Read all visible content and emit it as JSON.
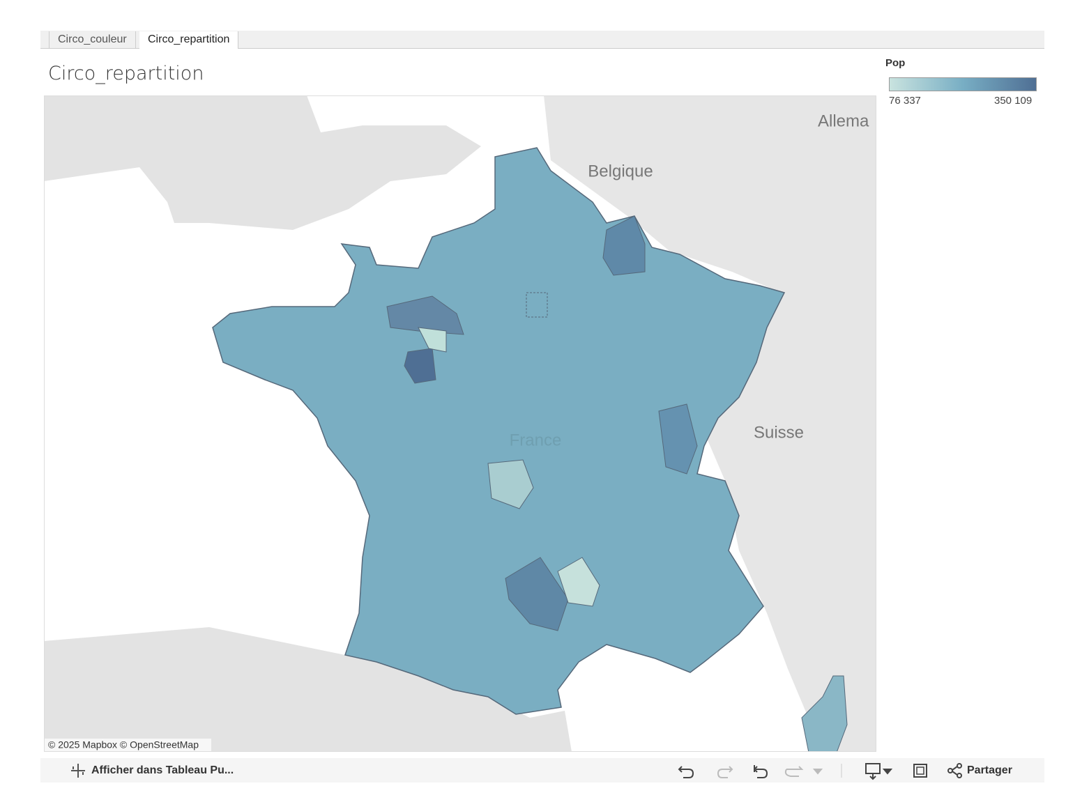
{
  "tabs": [
    "Circo_couleur",
    "Circo_repartition"
  ],
  "title": "Circo_repartition",
  "legend": {
    "title": "Pop",
    "min": "76 337",
    "max": "350 109"
  },
  "map": {
    "labels": [
      "Belgique",
      "Allema",
      "Suisse",
      "France"
    ],
    "attribution": "© 2025 Mapbox © OpenStreetMap"
  },
  "toolbar": {
    "open": "Afficher dans Tableau Pu...",
    "share": "Partager"
  }
}
